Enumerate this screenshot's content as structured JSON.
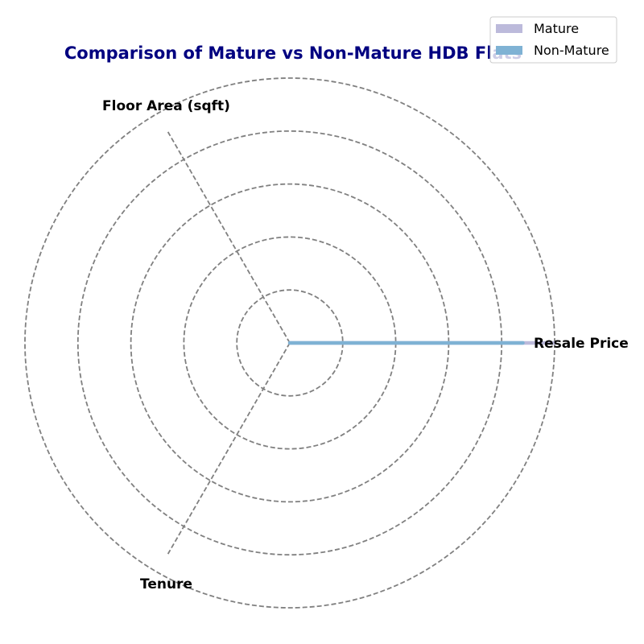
{
  "chart_data": {
    "type": "radar",
    "title": "Comparison of Mature vs Non-Mature HDB Flats",
    "axes": [
      "Resale Price",
      "Floor Area (sqft)",
      "Tenure"
    ],
    "rmax": 1.0,
    "ring_levels": [
      0.2,
      0.4,
      0.6,
      0.8,
      1.0
    ],
    "grid": true,
    "legend_position": "top-right",
    "series": [
      {
        "name": "Mature",
        "values": [
          1.0,
          0.0,
          0.0
        ],
        "color": "#bcbadb"
      },
      {
        "name": "Non-Mature",
        "values": [
          0.88,
          0.0,
          0.0
        ],
        "color": "#7fb2d4"
      }
    ],
    "colors": {
      "title": "#000080",
      "grid": "#808080"
    }
  }
}
